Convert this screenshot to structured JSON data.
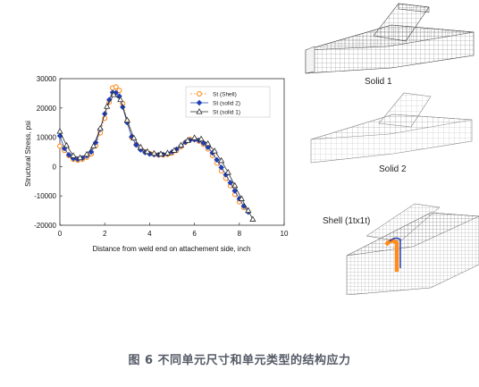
{
  "chart_data": {
    "type": "scatter",
    "title": "",
    "xlabel": "Distance from weld end on attachement side, inch",
    "ylabel": "Structural Stress, psi",
    "xlim": [
      0,
      10
    ],
    "ylim": [
      -20000,
      30000
    ],
    "xticks": [
      0,
      2,
      4,
      6,
      8,
      10
    ],
    "yticks": [
      -20000,
      -10000,
      0,
      10000,
      20000,
      30000
    ],
    "legend_position": "top-right",
    "series": [
      {
        "name": "St (Shell)",
        "color": "#ff8c1a",
        "marker": "circle",
        "line": "dashed",
        "points": [
          [
            0.0,
            7000
          ],
          [
            0.2,
            5500
          ],
          [
            0.4,
            3800
          ],
          [
            0.6,
            2500
          ],
          [
            0.8,
            2200
          ],
          [
            1.0,
            2500
          ],
          [
            1.2,
            3200
          ],
          [
            1.4,
            4300
          ],
          [
            1.6,
            7200
          ],
          [
            1.8,
            11500
          ],
          [
            2.0,
            16500
          ],
          [
            2.2,
            22000
          ],
          [
            2.35,
            26800
          ],
          [
            2.5,
            27200
          ],
          [
            2.65,
            26000
          ],
          [
            2.8,
            21500
          ],
          [
            3.0,
            15500
          ],
          [
            3.2,
            10000
          ],
          [
            3.4,
            7500
          ],
          [
            3.6,
            6000
          ],
          [
            3.8,
            5000
          ],
          [
            4.0,
            4500
          ],
          [
            4.2,
            4200
          ],
          [
            4.4,
            4000
          ],
          [
            4.6,
            4000
          ],
          [
            4.8,
            4200
          ],
          [
            5.0,
            4600
          ],
          [
            5.2,
            5500
          ],
          [
            5.4,
            6800
          ],
          [
            5.6,
            8300
          ],
          [
            5.8,
            9300
          ],
          [
            6.0,
            9300
          ],
          [
            6.2,
            8700
          ],
          [
            6.4,
            7600
          ],
          [
            6.6,
            6000
          ],
          [
            6.8,
            3800
          ],
          [
            7.0,
            1200
          ],
          [
            7.2,
            -1500
          ],
          [
            7.4,
            -4000
          ],
          [
            7.6,
            -6500
          ],
          [
            7.8,
            -9500
          ],
          [
            8.0,
            -12000
          ],
          [
            8.2,
            -14000
          ]
        ]
      },
      {
        "name": "St (solid 2)",
        "color": "#1f3fb5",
        "marker": "diamond",
        "line": "solid",
        "points": [
          [
            0.0,
            10500
          ],
          [
            0.2,
            6200
          ],
          [
            0.4,
            4000
          ],
          [
            0.6,
            2800
          ],
          [
            0.8,
            2500
          ],
          [
            1.0,
            2900
          ],
          [
            1.2,
            3700
          ],
          [
            1.4,
            5000
          ],
          [
            1.6,
            8200
          ],
          [
            1.8,
            12800
          ],
          [
            2.0,
            18000
          ],
          [
            2.2,
            22800
          ],
          [
            2.35,
            25300
          ],
          [
            2.5,
            25200
          ],
          [
            2.65,
            24000
          ],
          [
            2.8,
            20300
          ],
          [
            3.0,
            15000
          ],
          [
            3.2,
            10200
          ],
          [
            3.4,
            7400
          ],
          [
            3.6,
            5700
          ],
          [
            3.8,
            4800
          ],
          [
            4.0,
            4300
          ],
          [
            4.2,
            4100
          ],
          [
            4.4,
            4000
          ],
          [
            4.6,
            4100
          ],
          [
            4.8,
            4400
          ],
          [
            5.0,
            5000
          ],
          [
            5.2,
            5900
          ],
          [
            5.4,
            7100
          ],
          [
            5.6,
            8300
          ],
          [
            5.8,
            9000
          ],
          [
            6.0,
            9200
          ],
          [
            6.2,
            8900
          ],
          [
            6.4,
            8000
          ],
          [
            6.6,
            6600
          ],
          [
            6.8,
            4700
          ],
          [
            7.0,
            2300
          ],
          [
            7.2,
            -300
          ],
          [
            7.4,
            -2800
          ],
          [
            7.6,
            -5500
          ],
          [
            7.8,
            -8300
          ],
          [
            8.0,
            -11000
          ],
          [
            8.2,
            -13500
          ],
          [
            8.4,
            -15500
          ]
        ]
      },
      {
        "name": "St (solid 1)",
        "color": "#2a2a2a",
        "marker": "triangle",
        "line": "solid",
        "points": [
          [
            0.0,
            12000
          ],
          [
            0.3,
            7200
          ],
          [
            0.6,
            3700
          ],
          [
            0.9,
            3000
          ],
          [
            1.2,
            4200
          ],
          [
            1.5,
            7000
          ],
          [
            1.8,
            13000
          ],
          [
            2.1,
            20500
          ],
          [
            2.4,
            24500
          ],
          [
            2.7,
            22800
          ],
          [
            3.0,
            15800
          ],
          [
            3.3,
            9700
          ],
          [
            3.6,
            6600
          ],
          [
            3.9,
            5100
          ],
          [
            4.2,
            4500
          ],
          [
            4.5,
            4300
          ],
          [
            4.8,
            4600
          ],
          [
            5.1,
            5500
          ],
          [
            5.4,
            7300
          ],
          [
            5.7,
            8900
          ],
          [
            6.0,
            9800
          ],
          [
            6.3,
            9400
          ],
          [
            6.6,
            7800
          ],
          [
            6.9,
            5300
          ],
          [
            7.2,
            2000
          ],
          [
            7.5,
            -2000
          ],
          [
            7.8,
            -6500
          ],
          [
            8.1,
            -11000
          ],
          [
            8.4,
            -15000
          ],
          [
            8.6,
            -18000
          ]
        ]
      }
    ]
  },
  "panels": [
    {
      "label": "Solid 1"
    },
    {
      "label": "Solid 2"
    },
    {
      "label": "Shell (1tx1t)"
    }
  ],
  "caption": "图 6 不同单元尺寸和单元类型的结构应力"
}
